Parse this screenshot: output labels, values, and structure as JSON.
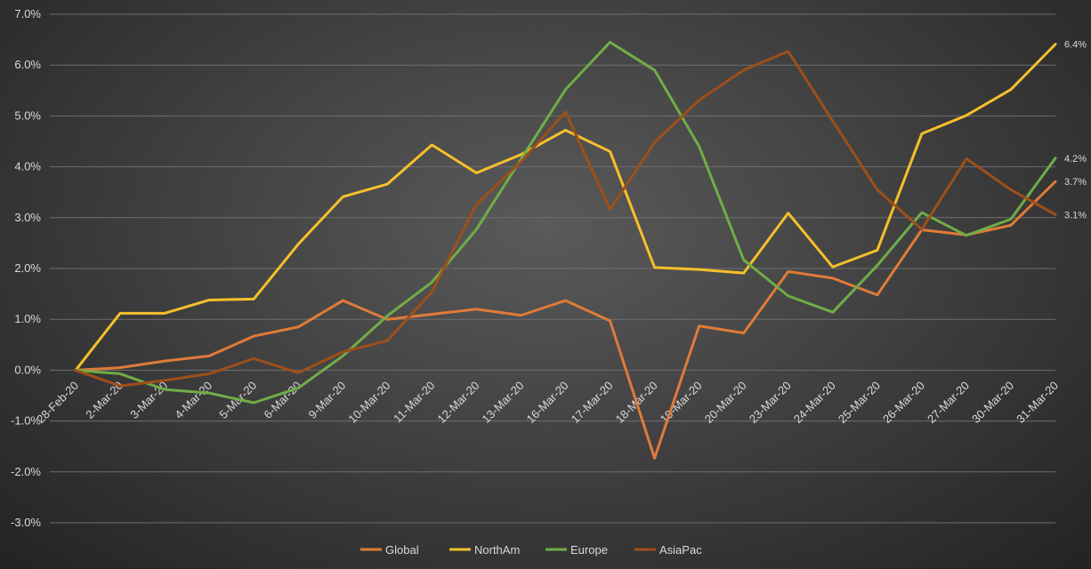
{
  "chart_data": {
    "type": "line",
    "title": "",
    "xlabel": "",
    "ylabel": "",
    "ylim": [
      -3.0,
      7.0
    ],
    "ytick_step": 1.0,
    "yticks": [
      "-3.0%",
      "-2.0%",
      "-1.0%",
      "0.0%",
      "1.0%",
      "2.0%",
      "3.0%",
      "4.0%",
      "5.0%",
      "6.0%",
      "7.0%"
    ],
    "grid": true,
    "legend_position": "bottom",
    "categories": [
      "28-Feb-20",
      "2-Mar-20",
      "3-Mar-20",
      "4-Mar-20",
      "5-Mar-20",
      "6-Mar-20",
      "9-Mar-20",
      "10-Mar-20",
      "11-Mar-20",
      "12-Mar-20",
      "13-Mar-20",
      "16-Mar-20",
      "17-Mar-20",
      "18-Mar-20",
      "19-Mar-20",
      "20-Mar-20",
      "23-Mar-20",
      "24-Mar-20",
      "25-Mar-20",
      "26-Mar-20",
      "27-Mar-20",
      "30-Mar-20",
      "31-Mar-20"
    ],
    "series": [
      {
        "name": "Global",
        "color": "#e07b39",
        "values": [
          0.0,
          0.05,
          0.18,
          0.28,
          0.67,
          0.85,
          1.37,
          1.0,
          1.1,
          1.2,
          1.08,
          1.37,
          0.97,
          -1.73,
          0.87,
          0.73,
          1.94,
          1.81,
          1.48,
          2.76,
          2.66,
          2.85,
          3.71
        ],
        "end_label": "3.7%"
      },
      {
        "name": "NorthAm",
        "color": "#f5c02a",
        "values": [
          0.0,
          1.12,
          1.12,
          1.38,
          1.4,
          2.48,
          3.41,
          3.66,
          4.43,
          3.88,
          4.24,
          4.72,
          4.3,
          2.02,
          1.98,
          1.91,
          3.09,
          2.03,
          2.36,
          4.65,
          5.01,
          5.52,
          6.41
        ],
        "end_label": "6.4%"
      },
      {
        "name": "Europe",
        "color": "#70ad47",
        "values": [
          0.0,
          -0.07,
          -0.38,
          -0.45,
          -0.64,
          -0.35,
          0.28,
          1.07,
          1.73,
          2.77,
          4.15,
          5.52,
          6.45,
          5.9,
          4.4,
          2.17,
          1.46,
          1.14,
          2.06,
          3.1,
          2.65,
          2.97,
          4.17
        ],
        "end_label": "4.2%"
      },
      {
        "name": "AsiaPac",
        "color": "#9e4f1a",
        "values": [
          0.0,
          -0.31,
          -0.2,
          -0.07,
          0.23,
          -0.05,
          0.36,
          0.58,
          1.54,
          3.26,
          4.1,
          5.08,
          3.16,
          4.48,
          5.31,
          5.9,
          6.27,
          4.9,
          3.55,
          2.77,
          4.16,
          3.55,
          3.06
        ],
        "end_label": "3.1%"
      }
    ]
  }
}
